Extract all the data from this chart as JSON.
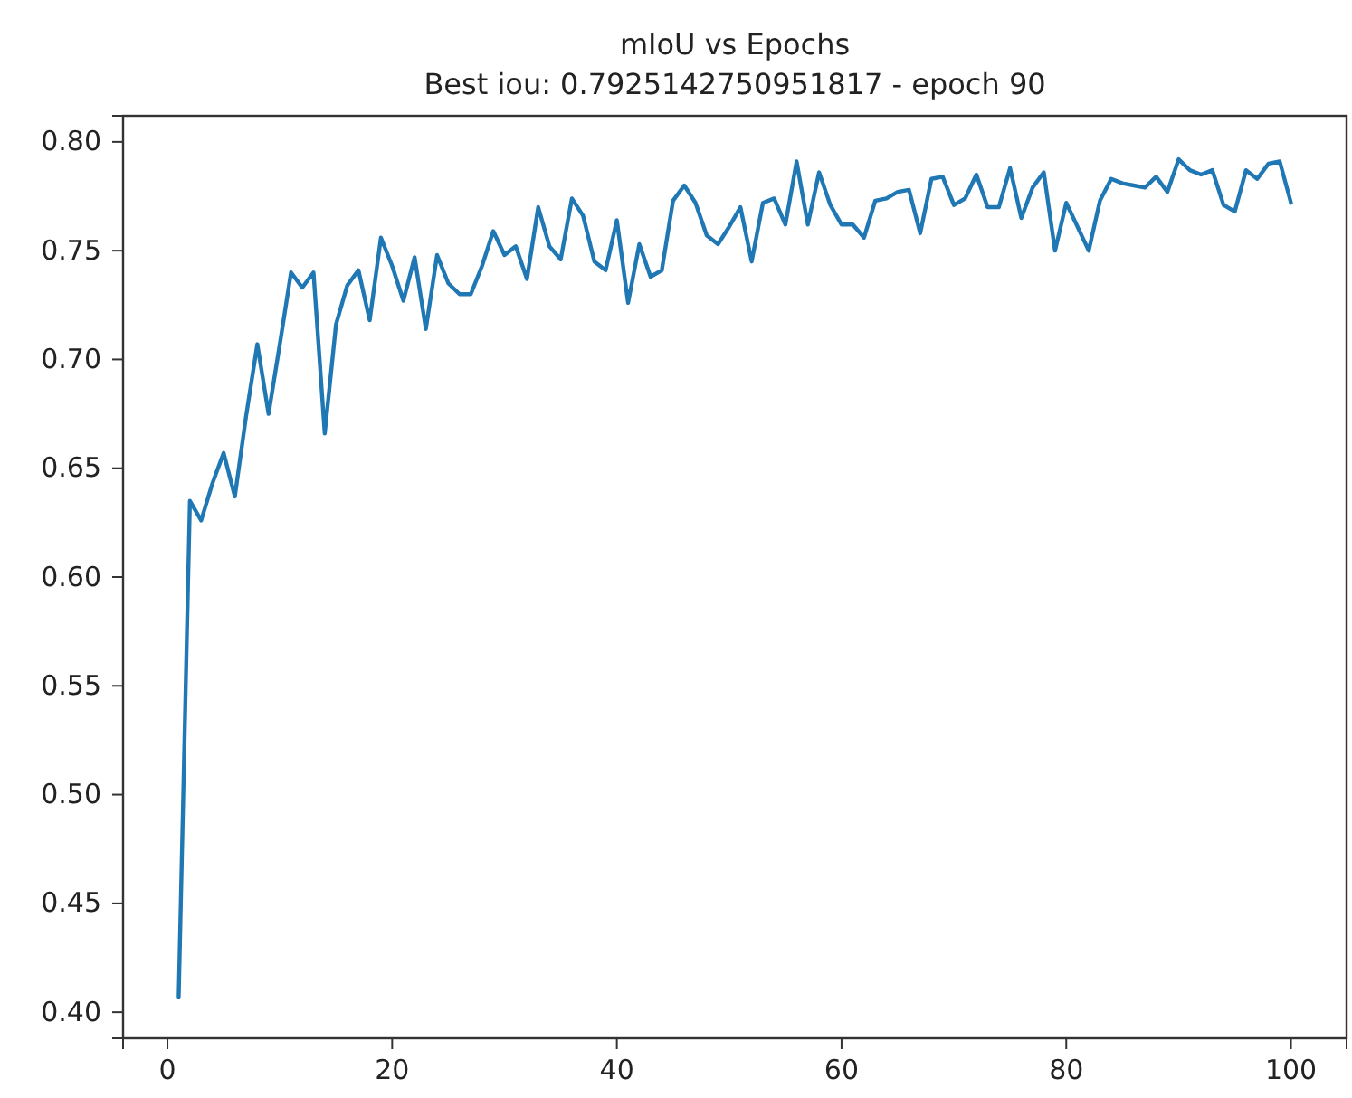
{
  "chart_data": {
    "type": "line",
    "title": "mIoU vs Epochs",
    "subtitle": "Best iou: 0.7925142750951817 - epoch 90",
    "x": [
      1,
      2,
      3,
      4,
      5,
      6,
      7,
      8,
      9,
      10,
      11,
      12,
      13,
      14,
      15,
      16,
      17,
      18,
      19,
      20,
      21,
      22,
      23,
      24,
      25,
      26,
      27,
      28,
      29,
      30,
      31,
      32,
      33,
      34,
      35,
      36,
      37,
      38,
      39,
      40,
      41,
      42,
      43,
      44,
      45,
      46,
      47,
      48,
      49,
      50,
      51,
      52,
      53,
      54,
      55,
      56,
      57,
      58,
      59,
      60,
      61,
      62,
      63,
      64,
      65,
      66,
      67,
      68,
      69,
      70,
      71,
      72,
      73,
      74,
      75,
      76,
      77,
      78,
      79,
      80,
      81,
      82,
      83,
      84,
      85,
      86,
      87,
      88,
      89,
      90,
      91,
      92,
      93,
      94,
      95,
      96,
      97,
      98,
      99,
      100
    ],
    "series": [
      {
        "color": "#1f77b4",
        "values": [
          0.407,
          0.635,
          0.626,
          0.643,
          0.657,
          0.637,
          0.674,
          0.707,
          0.675,
          0.707,
          0.74,
          0.733,
          0.74,
          0.666,
          0.716,
          0.734,
          0.741,
          0.718,
          0.756,
          0.743,
          0.727,
          0.747,
          0.714,
          0.748,
          0.735,
          0.73,
          0.73,
          0.743,
          0.759,
          0.748,
          0.752,
          0.737,
          0.77,
          0.752,
          0.746,
          0.774,
          0.766,
          0.745,
          0.741,
          0.764,
          0.726,
          0.753,
          0.738,
          0.741,
          0.773,
          0.78,
          0.772,
          0.757,
          0.753,
          0.761,
          0.77,
          0.745,
          0.772,
          0.774,
          0.762,
          0.791,
          0.762,
          0.786,
          0.771,
          0.762,
          0.762,
          0.756,
          0.773,
          0.774,
          0.777,
          0.778,
          0.758,
          0.783,
          0.784,
          0.771,
          0.774,
          0.785,
          0.77,
          0.77,
          0.788,
          0.765,
          0.779,
          0.786,
          0.75,
          0.772,
          0.761,
          0.75,
          0.773,
          0.783,
          0.781,
          0.78,
          0.779,
          0.784,
          0.777,
          0.792,
          0.787,
          0.785,
          0.787,
          0.771,
          0.768,
          0.787,
          0.783,
          0.79,
          0.791,
          0.772
        ]
      }
    ],
    "xlim": [
      -3.95,
      104.95
    ],
    "xticks": [
      0,
      20,
      40,
      60,
      80,
      100
    ],
    "ylim": [
      0.388,
      0.812
    ],
    "yticks": [
      {
        "value": 0.4,
        "label": "0.40"
      },
      {
        "value": 0.45,
        "label": "0.45"
      },
      {
        "value": 0.5,
        "label": "0.50"
      },
      {
        "value": 0.55,
        "label": "0.55"
      },
      {
        "value": 0.6,
        "label": "0.60"
      },
      {
        "value": 0.65,
        "label": "0.65"
      },
      {
        "value": 0.7,
        "label": "0.70"
      },
      {
        "value": 0.75,
        "label": "0.75"
      },
      {
        "value": 0.8,
        "label": "0.80"
      }
    ],
    "grid": false,
    "line_style": "solid",
    "marker": "none"
  }
}
